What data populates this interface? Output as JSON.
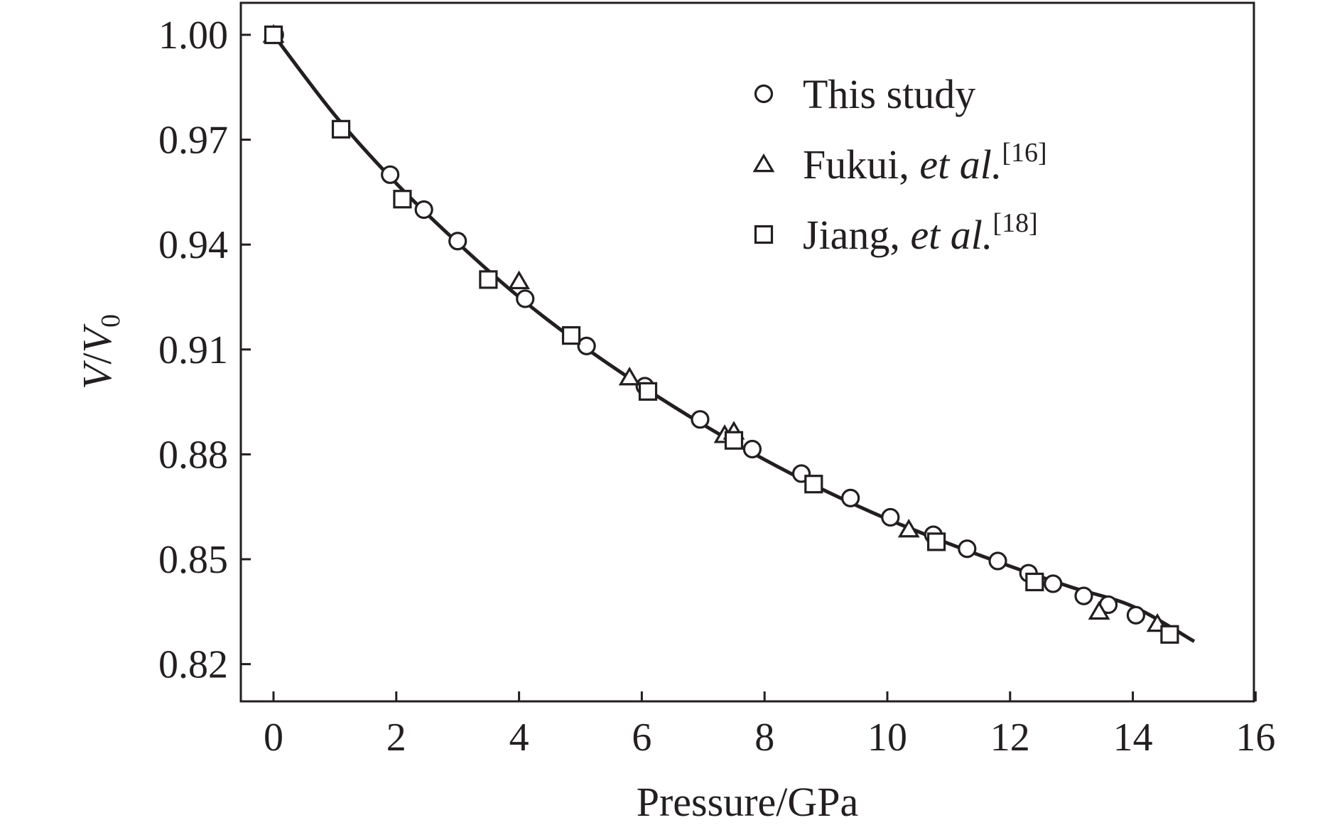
{
  "chart_data": {
    "type": "scatter",
    "xlabel": "Pressure/GPa",
    "ylabel_main": "V",
    "ylabel_slash": "/",
    "ylabel_denominator": "V",
    "ylabel_subscript": "0",
    "xlim": [
      -0.5,
      16
    ],
    "ylim": [
      0.811,
      1.009
    ],
    "x_ticks": [
      0,
      2,
      4,
      6,
      8,
      10,
      12,
      14,
      16
    ],
    "x_tick_labels": [
      "0",
      "2",
      "4",
      "6",
      "8",
      "10",
      "12",
      "14",
      "16"
    ],
    "y_ticks": [
      0.82,
      0.85,
      0.88,
      0.91,
      0.94,
      0.97,
      1.0
    ],
    "y_tick_labels": [
      "0.82",
      "0.85",
      "0.88",
      "0.91",
      "0.94",
      "0.97",
      "1.00"
    ],
    "grid": false,
    "legend_position": "top-right",
    "legend": [
      {
        "marker": "circle",
        "parts": [
          {
            "text": "This study",
            "style": "normal"
          }
        ]
      },
      {
        "marker": "triangle",
        "parts": [
          {
            "text": "Fukui, ",
            "style": "normal"
          },
          {
            "text": "et al.",
            "style": "italic"
          }
        ],
        "sup": "[16]"
      },
      {
        "marker": "square",
        "parts": [
          {
            "text": "Jiang, ",
            "style": "normal"
          },
          {
            "text": "et al.",
            "style": "italic"
          }
        ],
        "sup": "[18]"
      }
    ],
    "series": [
      {
        "marker": "circle",
        "points": [
          [
            0.02,
            1.0
          ],
          [
            1.9,
            0.96
          ],
          [
            2.45,
            0.95
          ],
          [
            3.0,
            0.941
          ],
          [
            4.1,
            0.9245
          ],
          [
            5.1,
            0.911
          ],
          [
            6.05,
            0.8995
          ],
          [
            6.95,
            0.89
          ],
          [
            7.8,
            0.8815
          ],
          [
            8.6,
            0.8745
          ],
          [
            9.4,
            0.8675
          ],
          [
            10.05,
            0.862
          ],
          [
            10.75,
            0.857
          ],
          [
            11.3,
            0.853
          ],
          [
            11.8,
            0.8495
          ],
          [
            12.3,
            0.846
          ],
          [
            12.7,
            0.843
          ],
          [
            13.2,
            0.8395
          ],
          [
            13.6,
            0.837
          ],
          [
            14.05,
            0.834
          ]
        ]
      },
      {
        "marker": "triangle",
        "points": [
          [
            0.0,
            1.0
          ],
          [
            4.0,
            0.9295
          ],
          [
            5.8,
            0.902
          ],
          [
            7.35,
            0.8855
          ],
          [
            7.5,
            0.8865
          ],
          [
            10.35,
            0.8585
          ],
          [
            13.45,
            0.835
          ],
          [
            14.4,
            0.8315
          ]
        ]
      },
      {
        "marker": "square",
        "points": [
          [
            0.0,
            1.0
          ],
          [
            1.1,
            0.973
          ],
          [
            2.1,
            0.953
          ],
          [
            3.5,
            0.93
          ],
          [
            4.85,
            0.914
          ],
          [
            6.1,
            0.898
          ],
          [
            7.5,
            0.884
          ],
          [
            8.8,
            0.8715
          ],
          [
            10.8,
            0.855
          ],
          [
            12.4,
            0.8435
          ],
          [
            14.6,
            0.8285
          ]
        ]
      }
    ],
    "fit_curve": {
      "x": [
        0,
        1,
        2,
        3,
        4,
        5,
        6,
        7,
        8,
        9,
        10,
        11,
        12,
        13,
        14,
        15
      ],
      "y": [
        1.0,
        0.977,
        0.9575,
        0.9405,
        0.925,
        0.9115,
        0.8995,
        0.8885,
        0.8785,
        0.8695,
        0.8615,
        0.8545,
        0.848,
        0.842,
        0.8365,
        0.8265
      ]
    }
  }
}
